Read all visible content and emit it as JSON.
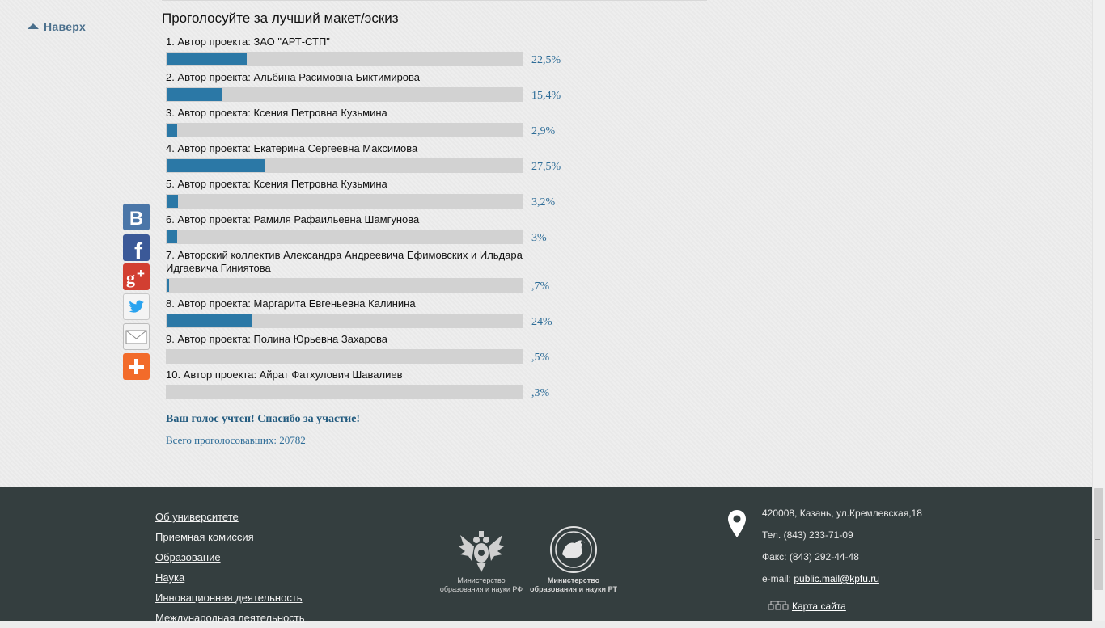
{
  "nav": {
    "back_to_top": "Наверх"
  },
  "poll": {
    "title": "Проголосуйте за лучший макет/эскиз",
    "items": [
      {
        "label": "1. Автор проекта: ЗАО \"АРТ-СТП\"",
        "percent_text": "22,5%",
        "percent": 22.5
      },
      {
        "label": "2. Автор проекта: Альбина Расимовна Биктимирова",
        "percent_text": "15,4%",
        "percent": 15.4
      },
      {
        "label": "3. Автор проекта: Ксения Петровна Кузьмина",
        "percent_text": "2,9%",
        "percent": 2.9
      },
      {
        "label": "4. Автор проекта: Екатерина Сергеевна Максимова",
        "percent_text": "27,5%",
        "percent": 27.5
      },
      {
        "label": "5. Автор проекта: Ксения Петровна Кузьмина",
        "percent_text": "3,2%",
        "percent": 3.2
      },
      {
        "label": "6. Автор проекта: Рамиля Рафаильевна Шамгунова",
        "percent_text": "3%",
        "percent": 3
      },
      {
        "label": "7. Авторский коллектив Александра Андреевича Ефимовских и Ильдара Идгаевича Гиниятова",
        "percent_text": ",7%",
        "percent": 0.7
      },
      {
        "label": "8. Автор проекта: Маргарита Евгеньевна Калинина",
        "percent_text": "24%",
        "percent": 24
      },
      {
        "label": "9. Автор проекта: Полина Юрьевна Захарова",
        "percent_text": ",5%",
        "percent": 0.5
      },
      {
        "label": "10. Автор проекта: Айрат Фатхулович Шавалиев",
        "percent_text": ",3%",
        "percent": 0.3
      }
    ],
    "thanks_message": "Ваш голос учтен! Спасибо за участие!",
    "total_votes": "Всего проголосовавших: 20782"
  },
  "share": [
    {
      "icon": "vk-icon",
      "color": "#4a76a8"
    },
    {
      "icon": "facebook-icon",
      "color": "#3b5998"
    },
    {
      "icon": "google-plus-icon",
      "color": "#d23f31"
    },
    {
      "icon": "twitter-icon",
      "color": "#1da1f2"
    },
    {
      "icon": "email-icon",
      "color": "#e6e6e6"
    },
    {
      "icon": "more-share-icon",
      "color": "#f26b2a"
    }
  ],
  "footer": {
    "links": [
      "Об университете",
      "Приемная комиссия",
      "Образование",
      "Наука",
      "Инновационная деятельность",
      "Международная деятельность"
    ],
    "logos": [
      {
        "caption_line1": "Министерство",
        "caption_line2": "образования и науки РФ"
      },
      {
        "caption_line1": "Министерство",
        "caption_line2": "образования и науки РТ"
      }
    ],
    "address": "420008, Казань, ул.Кремлевская,18",
    "phone": "Тел. (843) 233-71-09",
    "fax": "Факс: (843) 292-44-48",
    "email_label": "e-mail:",
    "email": "public.mail@kpfu.ru",
    "sitemap": "Карта сайта"
  },
  "colors": {
    "bar_fill": "#2b78a6",
    "bar_track": "#d2d2d2",
    "footer_bg": "#343e3f",
    "percent_text": "#2d6c97"
  }
}
